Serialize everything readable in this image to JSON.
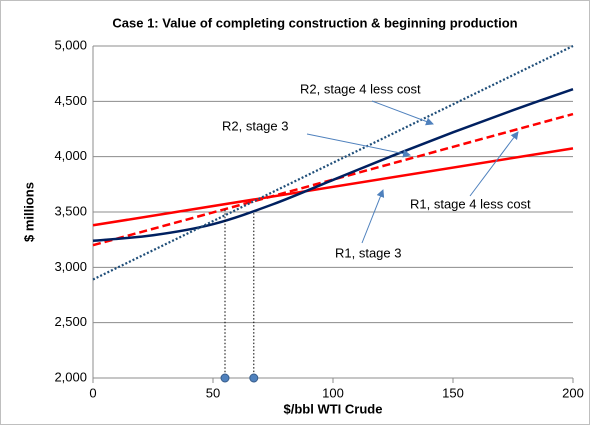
{
  "chart_data": {
    "type": "line",
    "title": "Case 1: Value of completing construction & beginning production",
    "x_label": "$/bbl WTI Crude",
    "y_label": "$ millions",
    "xlim": [
      0,
      200
    ],
    "xticks": [
      0,
      50,
      100,
      150,
      200
    ],
    "ylim": [
      2000,
      5000
    ],
    "yticks": [
      {
        "value": 2000,
        "label": "2,000"
      },
      {
        "value": 2500,
        "label": "2,500"
      },
      {
        "value": 3000,
        "label": "3,000"
      },
      {
        "value": 3500,
        "label": "3,500"
      },
      {
        "value": 4000,
        "label": "4,000"
      },
      {
        "value": 4500,
        "label": "4,500"
      },
      {
        "value": 5000,
        "label": "5,000"
      }
    ],
    "grid": true,
    "series": [
      {
        "name": "R1, stage 3",
        "color": "#ff0000",
        "style": "solid",
        "x": [
          0,
          200
        ],
        "values": [
          3380,
          4075
        ]
      },
      {
        "name": "R1, stage 4 less cost",
        "color": "#ff0000",
        "style": "dashed",
        "x": [
          0,
          200
        ],
        "values": [
          3200,
          4385
        ]
      },
      {
        "name": "R2, stage 3",
        "color": "#002060",
        "style": "solid",
        "x": [
          0,
          25,
          50,
          75,
          100,
          125,
          150,
          175,
          200
        ],
        "values": [
          3240,
          3290,
          3390,
          3570,
          3790,
          4010,
          4220,
          4420,
          4610
        ]
      },
      {
        "name": "R2, stage 4 less cost",
        "color": "#1f4e79",
        "style": "dotted",
        "x": [
          0,
          200
        ],
        "values": [
          2890,
          5000
        ]
      }
    ],
    "drop_lines": [
      {
        "x": 55,
        "y": 3520
      },
      {
        "x": 67,
        "y": 3490
      }
    ],
    "marker_color": "#4f81bd"
  }
}
